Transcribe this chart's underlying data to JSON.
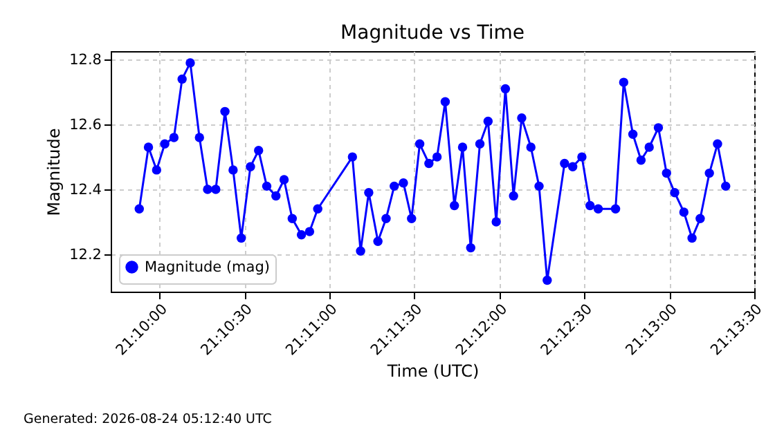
{
  "chart_data": {
    "type": "line",
    "title": "Magnitude vs Time",
    "xlabel": "Time (UTC)",
    "ylabel": "Magnitude",
    "x": [
      21.1647,
      21.1656,
      21.1664,
      21.1672,
      21.1681,
      21.1689,
      21.1697,
      21.1706,
      21.1714,
      21.1722,
      21.1731,
      21.1739,
      21.1747,
      21.1756,
      21.1764,
      21.1772,
      21.1781,
      21.1789,
      21.1797,
      21.1806,
      21.1814,
      21.1822,
      21.1856,
      21.1864,
      21.1872,
      21.1881,
      21.1889,
      21.1897,
      21.1906,
      21.1914,
      21.1922,
      21.1931,
      21.1939,
      21.1947,
      21.1956,
      21.1964,
      21.1972,
      21.1981,
      21.1989,
      21.1997,
      21.2006,
      21.2014,
      21.2022,
      21.2031,
      21.2039,
      21.2047,
      21.2064,
      21.2072,
      21.2081,
      21.2089,
      21.2097,
      21.2114,
      21.2122,
      21.2131,
      21.2139,
      21.2147,
      21.2156,
      21.2164,
      21.2172,
      21.2181,
      21.2189,
      21.2197,
      21.2206,
      21.2214,
      21.2222
    ],
    "series": [
      {
        "name": "Magnitude (mag)",
        "color": "#0000ff",
        "values": [
          12.34,
          12.53,
          12.46,
          12.54,
          12.56,
          12.74,
          12.79,
          12.56,
          12.4,
          12.4,
          12.64,
          12.46,
          12.25,
          12.47,
          12.52,
          12.41,
          12.38,
          12.43,
          12.31,
          12.26,
          12.27,
          12.34,
          12.5,
          12.21,
          12.39,
          12.24,
          12.31,
          12.41,
          12.42,
          12.31,
          12.54,
          12.48,
          12.5,
          12.67,
          12.35,
          12.53,
          12.22,
          12.54,
          12.61,
          12.3,
          12.71,
          12.38,
          12.62,
          12.53,
          12.41,
          12.12,
          12.48,
          12.47,
          12.5,
          12.35,
          12.34,
          12.34,
          12.73,
          12.57,
          12.49,
          12.53,
          12.59,
          12.45,
          12.39,
          12.33,
          12.25,
          12.31,
          12.45,
          12.54,
          12.41
        ]
      }
    ],
    "xlim": [
      21.1619,
      21.225
    ],
    "xticks": [
      {
        "value": 21.16667,
        "label": "21:10:00"
      },
      {
        "value": 21.175,
        "label": "21:10:30"
      },
      {
        "value": 21.18333,
        "label": "21:11:00"
      },
      {
        "value": 21.19167,
        "label": "21:11:30"
      },
      {
        "value": 21.2,
        "label": "21:12:00"
      },
      {
        "value": 21.20833,
        "label": "21:12:30"
      },
      {
        "value": 21.21667,
        "label": "21:13:00"
      },
      {
        "value": 21.225,
        "label": "21:13:30"
      }
    ],
    "ylim": [
      12.085,
      12.826
    ],
    "yticks": [
      12.2,
      12.4,
      12.6,
      12.8
    ],
    "grid": true,
    "legend": "bottom left",
    "marker": "circle",
    "line_style": "solid",
    "annotations": [
      "Generated: 2026-08-24 05:12:40 UTC"
    ]
  }
}
